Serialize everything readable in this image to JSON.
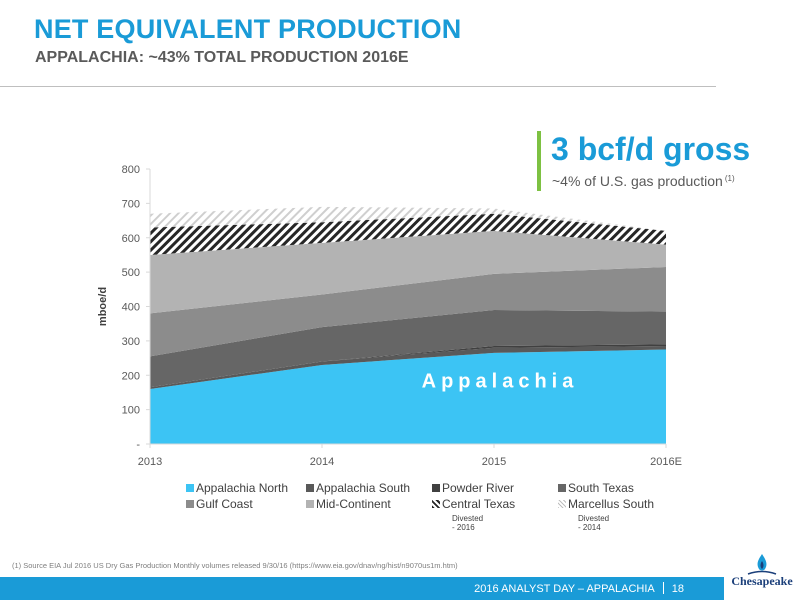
{
  "header": {
    "title": "NET EQUIVALENT PRODUCTION",
    "subtitle": "APPALACHIA: ~43% TOTAL PRODUCTION 2016E"
  },
  "callout": {
    "headline": "3 bcf/d gross",
    "subtext": "~4% of U.S. gas production",
    "footnote_ref": "(1)"
  },
  "chart_data": {
    "type": "area",
    "stacked": true,
    "x": [
      "2013",
      "2014",
      "2015",
      "2016E"
    ],
    "ylabel": "mboe/d",
    "ylim": [
      0,
      800
    ],
    "yticks": [
      "-",
      "100",
      "200",
      "300",
      "400",
      "500",
      "600",
      "700",
      "800"
    ],
    "annotation": "Appalachia",
    "series": [
      {
        "name": "Appalachia North",
        "values": [
          160,
          230,
          265,
          275
        ],
        "color": "#3cc4f4",
        "pattern": "solid"
      },
      {
        "name": "Appalachia South",
        "values": [
          5,
          10,
          15,
          10
        ],
        "color": "#595959",
        "pattern": "solid"
      },
      {
        "name": "Powder River",
        "values": [
          0,
          0,
          5,
          5
        ],
        "color": "#404040",
        "pattern": "solid"
      },
      {
        "name": "South Texas",
        "values": [
          90,
          100,
          105,
          95
        ],
        "color": "#666666",
        "pattern": "solid"
      },
      {
        "name": "Gulf Coast",
        "values": [
          125,
          95,
          105,
          130
        ],
        "color": "#8c8c8c",
        "pattern": "solid"
      },
      {
        "name": "Mid-Continent",
        "values": [
          170,
          150,
          125,
          65
        ],
        "color": "#b3b3b3",
        "pattern": "solid"
      },
      {
        "name": "Central Texas",
        "values": [
          80,
          60,
          50,
          40
        ],
        "color": "#262626",
        "pattern": "hatch-dark"
      },
      {
        "name": "Marcellus South",
        "values": [
          40,
          45,
          15,
          0
        ],
        "color": "#bfbfbf",
        "pattern": "hatch-light"
      }
    ],
    "legend_notes": {
      "Central Texas": "Divested - 2016",
      "Marcellus South": "Divested - 2014"
    },
    "legend_position": "bottom",
    "grid": false
  },
  "footnote": "(1)  Source EIA Jul 2016 US Dry Gas Production Monthly volumes released 9/30/16 (https://www.eia.gov/dnav/ng/hist/n9070us1m.htm)",
  "footer": {
    "text": "2016 ANALYST DAY – APPALACHIA",
    "page": "18",
    "logo_text": "Chesapeake"
  }
}
